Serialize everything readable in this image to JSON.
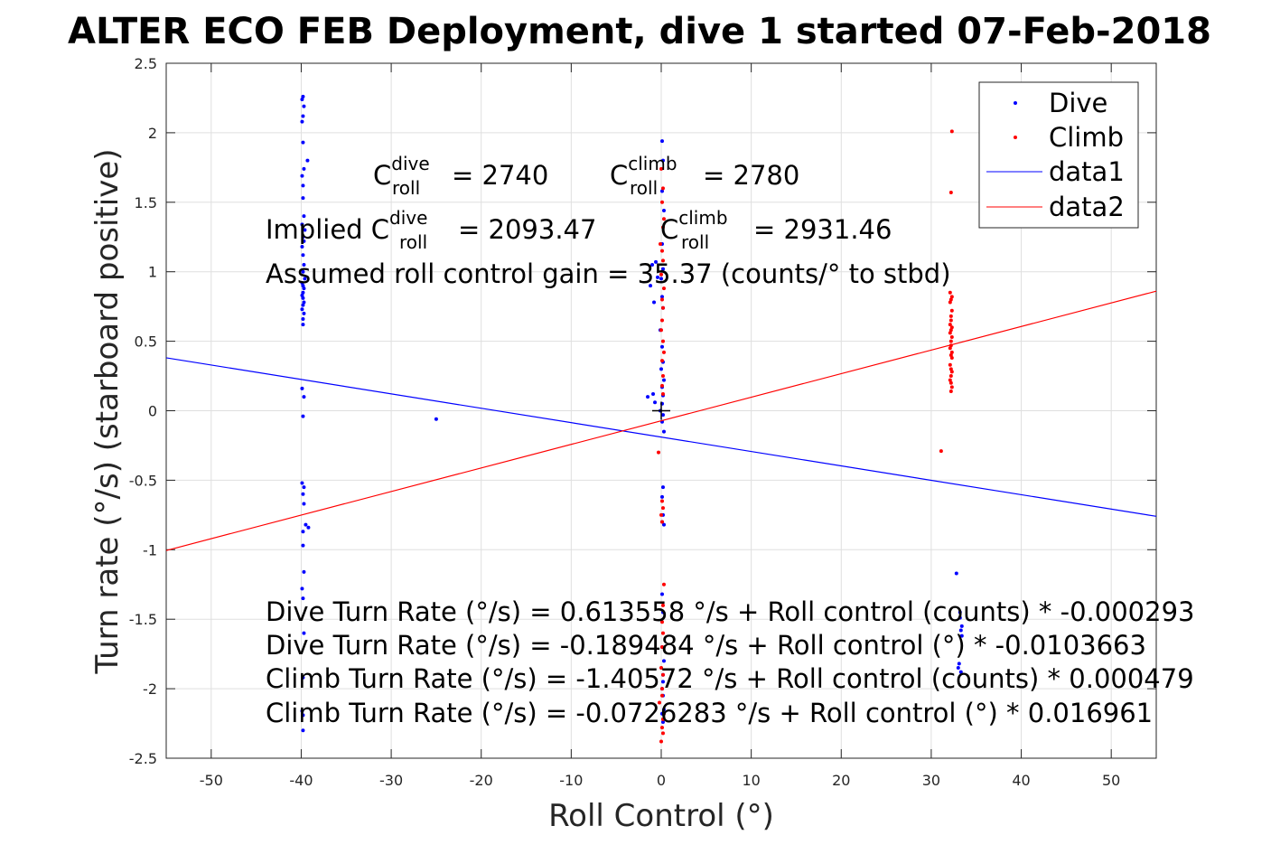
{
  "chart_data": {
    "type": "scatter",
    "title": "ALTER ECO FEB Deployment, dive 1 started 07-Feb-2018",
    "xlabel": "Roll Control (°)",
    "ylabel": "Turn rate (°/s) (starboard positive)",
    "xlim": [
      -55,
      55
    ],
    "ylim": [
      -2.5,
      2.5
    ],
    "xticks": [
      -50,
      -40,
      -30,
      -20,
      -10,
      0,
      10,
      20,
      30,
      40,
      50
    ],
    "yticks": [
      -2.5,
      -2,
      -1.5,
      -1,
      -0.5,
      0,
      0.5,
      1,
      1.5,
      2,
      2.5
    ],
    "grid": true,
    "legend_position": "top-right",
    "legend": [
      "Dive",
      "Climb",
      "data1",
      "data2"
    ],
    "colors": {
      "dive": "#0000ff",
      "climb": "#ff0000",
      "origin_marker": "#000000"
    },
    "annotations": {
      "c_dive": {
        "prefix": "C",
        "sup": "dive",
        "sub": "roll",
        "value": "= 2740"
      },
      "c_climb": {
        "prefix": "C",
        "sup": "climb",
        "sub": "roll",
        "value": "= 2780"
      },
      "implied_dive": {
        "prefix": "Implied C",
        "sup": "dive",
        "sub": "roll",
        "value": "= 2093.47"
      },
      "implied_climb": {
        "prefix": "C",
        "sup": "climb",
        "sub": "roll",
        "value": "= 2931.46"
      },
      "gain": "Assumed roll control gain = 35.37 (counts/° to stbd)",
      "eq1": "Dive Turn Rate (°/s) = 0.613558 °/s + Roll control (counts) * -0.000293",
      "eq2": "Dive Turn Rate (°/s) = -0.189484 °/s + Roll control (°) * -0.0103663",
      "eq3": "Climb Turn Rate (°/s) = -1.40572 °/s + Roll control (counts) * 0.000479",
      "eq4": "Climb Turn Rate (°/s) = -0.0726283 °/s + Roll control (°) * 0.016961"
    },
    "origin_marker": [
      0,
      0
    ],
    "series": [
      {
        "name": "Dive",
        "type": "points",
        "x": [
          -39.8,
          -39.9,
          -39.7,
          -39.8,
          -39.9,
          -39.8,
          -39.7,
          -39.9,
          -39.8,
          -39.3,
          -39.8,
          -39.7,
          -39.9,
          -39.6,
          -39.8,
          -39.7,
          -39.9,
          -39.8,
          -39.7,
          -39.8,
          -39.6,
          -39.9,
          -39.8,
          -39.7,
          -39.8,
          -39.9,
          -39.8,
          -39.7,
          -39.8,
          -39.9,
          -39.7,
          -39.8,
          -39.8,
          -39.9,
          -39.7,
          -39.8,
          -39.9,
          -39.7,
          -39.8,
          -39.7,
          -39.5,
          -39.2,
          -39.8,
          -39.8,
          -39.7,
          -39.9,
          -39.8,
          -39.7,
          -39.8,
          -39.9,
          -39.8,
          -39.8,
          -25.0,
          0.1,
          0.2,
          0.1,
          0.3,
          0.1,
          0.2,
          0.0,
          0.1,
          0.2,
          -0.1,
          0.1,
          0.2,
          0.0,
          0.3,
          0.1,
          0.2,
          0.1,
          -0.1,
          0.2,
          0.1,
          0.3,
          0.2,
          0.1,
          0.2,
          0.1,
          0.3,
          0.1,
          0.2,
          0.1,
          0.3,
          0.2,
          0.2,
          0.1,
          0.2,
          0.3,
          0.1,
          0.2,
          -0.6,
          -1.0,
          -1.2,
          -0.4,
          -0.8,
          -0.9,
          -1.5,
          -0.7,
          32.8,
          33.2,
          33.4,
          33.3,
          33.1,
          33.0,
          33.4,
          33.2,
          33.3
        ],
        "y": [
          2.26,
          2.24,
          2.19,
          2.12,
          2.08,
          1.93,
          1.74,
          1.69,
          1.62,
          1.8,
          1.53,
          1.4,
          1.34,
          1.3,
          1.25,
          1.22,
          1.18,
          1.12,
          1.05,
          1.0,
          0.95,
          0.92,
          0.9,
          0.88,
          0.85,
          0.83,
          0.81,
          0.78,
          0.76,
          0.73,
          0.7,
          0.66,
          0.62,
          0.16,
          0.1,
          -0.04,
          -0.52,
          -0.55,
          -0.6,
          -0.67,
          -0.82,
          -0.84,
          -0.87,
          -0.97,
          -1.16,
          -1.28,
          -1.35,
          -1.6,
          -1.92,
          -2.16,
          -2.19,
          -2.3,
          -0.06,
          1.94,
          1.8,
          1.58,
          1.44,
          1.2,
          1.02,
          0.95,
          0.82,
          0.74,
          0.58,
          0.46,
          0.35,
          0.3,
          0.22,
          0.17,
          0.11,
          0.05,
          0.0,
          -0.03,
          -0.08,
          -0.15,
          -0.55,
          -0.62,
          -0.75,
          -0.8,
          -0.82,
          -1.32,
          -1.45,
          -1.7,
          -1.8,
          -1.9,
          -1.95,
          -2.0,
          -2.05,
          -2.15,
          -2.18,
          -2.24,
          1.07,
          1.05,
          0.9,
          0.96,
          0.78,
          0.12,
          0.1,
          0.06,
          -1.17,
          -1.45,
          -1.55,
          -1.58,
          -1.82,
          -1.85,
          -1.62,
          -1.49,
          -1.88
        ]
      },
      {
        "name": "Climb",
        "type": "points",
        "x": [
          32.3,
          32.2,
          32.1,
          32.3,
          32.2,
          32.1,
          32.3,
          32.2,
          32.2,
          32.1,
          32.3,
          32.2,
          32.1,
          32.3,
          32.2,
          32.2,
          32.1,
          32.3,
          32.2,
          32.3,
          32.1,
          32.2,
          32.3,
          32.2,
          32.1,
          32.2,
          32.3,
          32.2,
          31.1,
          0.0,
          0.2,
          0.1,
          0.3,
          0.2,
          -0.1,
          0.1,
          0.2,
          0.0,
          0.3,
          0.1,
          0.2,
          0.1,
          0.0,
          0.2,
          0.3,
          0.1,
          0.2,
          0.1,
          0.2,
          -0.3,
          0.1,
          0.2,
          0.0,
          0.1,
          0.3,
          0.2,
          0.1,
          0.2,
          0.1,
          0.0,
          0.2,
          0.1,
          0.1,
          -0.2,
          0.3,
          0.2,
          0.1,
          0.2,
          0.0
        ],
        "y": [
          2.01,
          1.57,
          0.85,
          0.82,
          0.8,
          0.78,
          0.72,
          0.68,
          0.65,
          0.62,
          0.6,
          0.58,
          0.56,
          0.53,
          0.5,
          0.47,
          0.45,
          0.42,
          0.4,
          0.38,
          0.33,
          0.3,
          0.28,
          0.25,
          0.22,
          0.2,
          0.17,
          0.14,
          -0.29,
          1.74,
          1.6,
          1.5,
          1.38,
          1.32,
          1.2,
          1.15,
          1.08,
          0.98,
          0.88,
          0.8,
          0.74,
          0.65,
          0.58,
          0.5,
          0.42,
          0.36,
          0.25,
          0.18,
          0.12,
          -0.3,
          -0.65,
          -0.7,
          -0.75,
          -0.8,
          -1.25,
          -1.4,
          -1.52,
          -1.6,
          -1.7,
          -1.85,
          -1.9,
          -2.0,
          -2.05,
          -2.1,
          -2.18,
          -2.22,
          -2.28,
          -2.32,
          -2.38
        ]
      },
      {
        "name": "data1",
        "type": "line",
        "x": [
          -55,
          55
        ],
        "y": [
          0.380663,
          -0.759629
        ]
      },
      {
        "name": "data2",
        "type": "line",
        "x": [
          -55,
          55
        ],
        "y": [
          -1.005483,
          0.860227
        ]
      }
    ]
  }
}
